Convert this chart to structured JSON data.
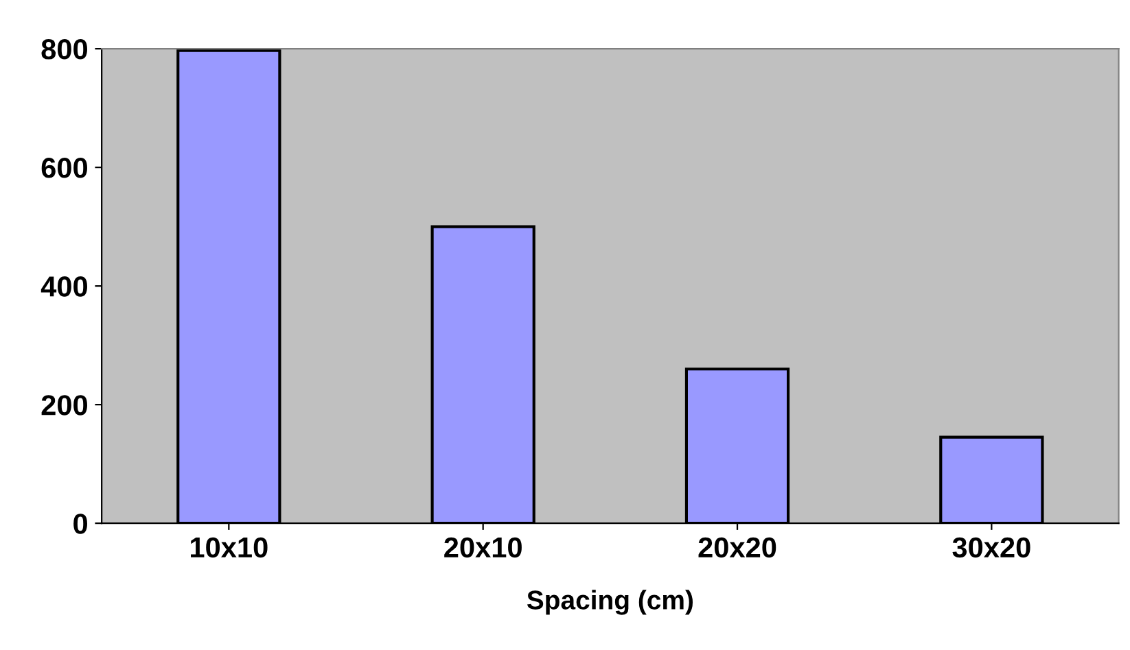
{
  "chart_data": {
    "type": "bar",
    "xlabel": "Spacing (cm)",
    "categories": [
      "10x10",
      "20x10",
      "20x20",
      "30x20"
    ],
    "values": [
      797,
      500,
      260,
      145
    ],
    "color": "#9999ff",
    "ylim": [
      0,
      800
    ],
    "yticks": [
      0,
      200,
      400,
      600,
      800
    ],
    "grid": false
  }
}
